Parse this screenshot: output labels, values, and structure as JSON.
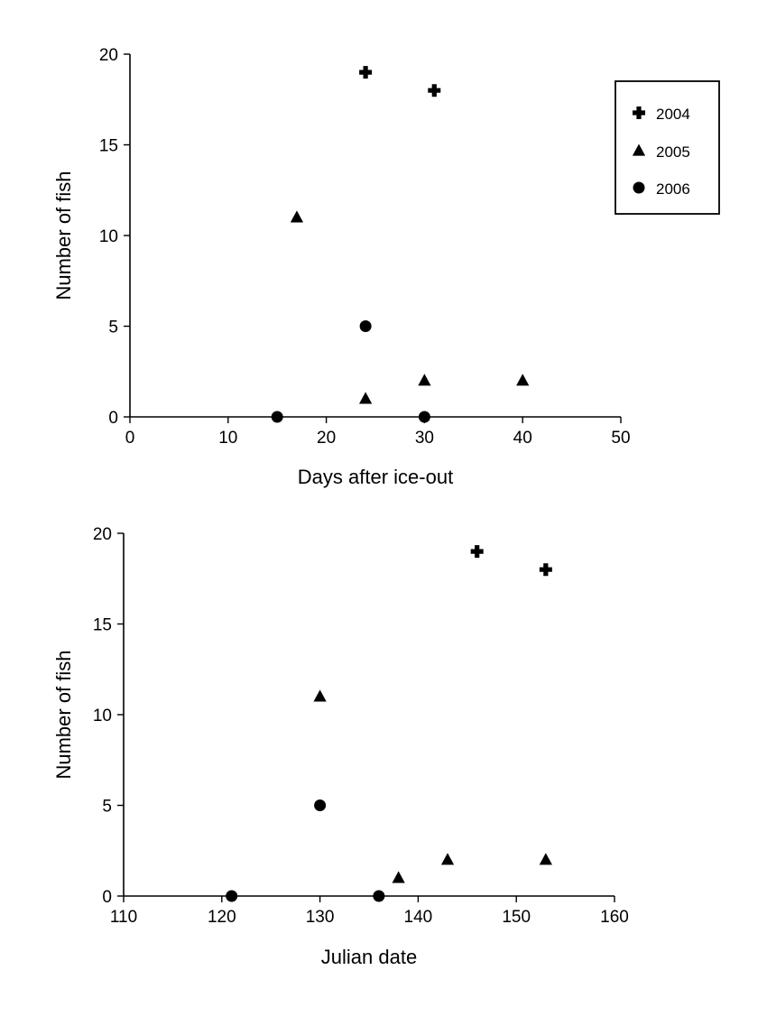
{
  "chart_data": [
    {
      "type": "scatter",
      "xlabel": "Days after ice-out",
      "ylabel": "Number of fish",
      "xlim": [
        0,
        50
      ],
      "ylim": [
        0,
        20
      ],
      "xticks": [
        0,
        10,
        20,
        30,
        40,
        50
      ],
      "yticks": [
        0,
        5,
        10,
        15,
        20
      ],
      "grid": false,
      "legend": {
        "placement": "top-right",
        "entries": [
          "2004",
          "2005",
          "2006"
        ]
      },
      "series": [
        {
          "name": "2004",
          "marker": "cross",
          "points": [
            [
              24,
              19
            ],
            [
              31,
              18
            ]
          ]
        },
        {
          "name": "2005",
          "marker": "triangle",
          "points": [
            [
              17,
              11
            ],
            [
              24,
              1
            ],
            [
              30,
              2
            ],
            [
              40,
              2
            ]
          ]
        },
        {
          "name": "2006",
          "marker": "circle",
          "points": [
            [
              15,
              0
            ],
            [
              24,
              5
            ],
            [
              30,
              0
            ]
          ]
        }
      ]
    },
    {
      "type": "scatter",
      "xlabel": "Julian date",
      "ylabel": "Number of fish",
      "xlim": [
        110,
        160
      ],
      "ylim": [
        0,
        20
      ],
      "xticks": [
        110,
        120,
        130,
        140,
        150,
        160
      ],
      "yticks": [
        0,
        5,
        10,
        15,
        20
      ],
      "grid": false,
      "series": [
        {
          "name": "2004",
          "marker": "cross",
          "points": [
            [
              146,
              19
            ],
            [
              153,
              18
            ]
          ]
        },
        {
          "name": "2005",
          "marker": "triangle",
          "points": [
            [
              130,
              11
            ],
            [
              138,
              1
            ],
            [
              143,
              2
            ],
            [
              153,
              2
            ]
          ]
        },
        {
          "name": "2006",
          "marker": "circle",
          "points": [
            [
              121,
              0
            ],
            [
              130,
              5
            ],
            [
              136,
              0
            ]
          ]
        }
      ]
    }
  ]
}
